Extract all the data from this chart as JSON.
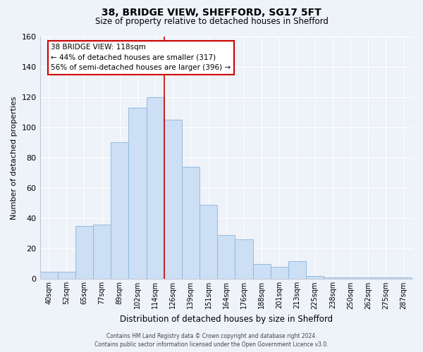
{
  "title": "38, BRIDGE VIEW, SHEFFORD, SG17 5FT",
  "subtitle": "Size of property relative to detached houses in Shefford",
  "xlabel": "Distribution of detached houses by size in Shefford",
  "ylabel": "Number of detached properties",
  "bar_labels": [
    "40sqm",
    "52sqm",
    "65sqm",
    "77sqm",
    "89sqm",
    "102sqm",
    "114sqm",
    "126sqm",
    "139sqm",
    "151sqm",
    "164sqm",
    "176sqm",
    "188sqm",
    "201sqm",
    "213sqm",
    "225sqm",
    "238sqm",
    "250sqm",
    "262sqm",
    "275sqm",
    "287sqm"
  ],
  "bar_values": [
    5,
    5,
    35,
    36,
    90,
    113,
    120,
    105,
    74,
    49,
    29,
    26,
    10,
    8,
    12,
    2,
    1,
    1,
    1,
    1,
    1
  ],
  "bar_color": "#ccdff5",
  "bar_edge_color": "#8ab4d8",
  "vline_x_index": 6.5,
  "vline_color": "#cc0000",
  "annotation_title": "38 BRIDGE VIEW: 118sqm",
  "annotation_line1": "← 44% of detached houses are smaller (317)",
  "annotation_line2": "56% of semi-detached houses are larger (396) →",
  "annotation_box_color": "#ffffff",
  "annotation_box_edge": "#cc0000",
  "ylim": [
    0,
    160
  ],
  "yticks": [
    0,
    20,
    40,
    60,
    80,
    100,
    120,
    140,
    160
  ],
  "footer1": "Contains HM Land Registry data © Crown copyright and database right 2024.",
  "footer2": "Contains public sector information licensed under the Open Government Licence v3.0.",
  "bg_color": "#eef2f9",
  "grid_color": "#ffffff",
  "spine_color": "#c0c8d8"
}
